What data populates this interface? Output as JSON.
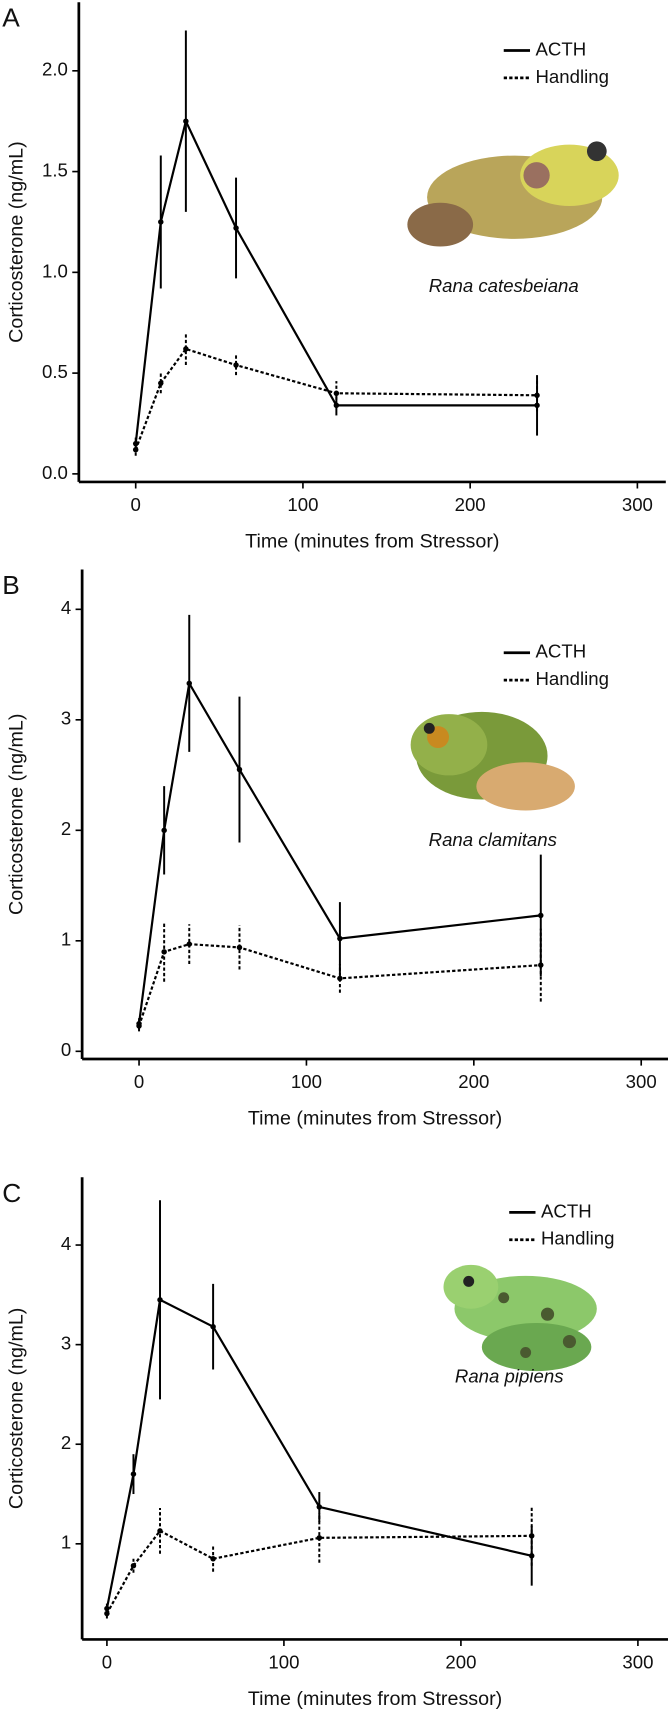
{
  "chart_data": [
    {
      "type": "line",
      "panel": "A",
      "xlabel": "Time (minutes from Stressor)",
      "ylabel": "Corticosterone (ng/mL)",
      "annotation": "Rana catesbeiana",
      "x": [
        0,
        15,
        30,
        60,
        120,
        240
      ],
      "xlim": [
        -34,
        317
      ],
      "xticks": [
        0,
        100,
        200,
        300
      ],
      "ylim": [
        -0.04,
        2.34
      ],
      "yticks": [
        {
          "value": 0,
          "label": "0.0"
        },
        0.5,
        {
          "value": 1,
          "label": "1.0"
        },
        1.5,
        {
          "value": 2,
          "label": "2.0"
        }
      ],
      "legend": "top right",
      "series": [
        {
          "name": "ACTH",
          "color": "#000000",
          "linestyle": "solid",
          "values": [
            0.15,
            1.25,
            1.75,
            1.22,
            0.34,
            0.34
          ],
          "errors": [
            0.03,
            0.33,
            0.45,
            0.25,
            0.05,
            0.15
          ]
        },
        {
          "name": "Handling",
          "color": "#000000",
          "linestyle": "dotted",
          "values": [
            0.12,
            0.45,
            0.62,
            0.54,
            0.4,
            0.39
          ],
          "errors": [
            0.03,
            0.05,
            0.08,
            0.05,
            0.06,
            0.08
          ]
        }
      ]
    },
    {
      "type": "line",
      "panel": "B",
      "xlabel": "Time (minutes from Stressor)",
      "ylabel": "Corticosterone (ng/mL)",
      "annotation": "Rana clamitans",
      "x": [
        0,
        15,
        30,
        60,
        120,
        240
      ],
      "xlim": [
        -34,
        316
      ],
      "xticks": [
        0,
        100,
        200,
        300
      ],
      "ylim": [
        -0.07,
        4.36
      ],
      "yticks": [
        0,
        1,
        2,
        3,
        4
      ],
      "legend": "top right",
      "series": [
        {
          "name": "ACTH",
          "color": "#000000",
          "linestyle": "solid",
          "values": [
            0.25,
            2.0,
            3.33,
            2.55,
            1.02,
            1.23
          ],
          "errors": [
            0.05,
            0.4,
            0.62,
            0.66,
            0.33,
            0.55
          ]
        },
        {
          "name": "Handling",
          "color": "#000000",
          "linestyle": "dotted",
          "values": [
            0.23,
            0.9,
            0.97,
            0.94,
            0.66,
            0.78
          ],
          "errors": [
            0.05,
            0.27,
            0.18,
            0.2,
            0.13,
            0.33
          ]
        }
      ]
    },
    {
      "type": "line",
      "panel": "C",
      "xlabel": "Time (minutes from Stressor)",
      "ylabel": "Corticosterone (ng/mL)",
      "annotation": "Rana pipiens",
      "x": [
        0,
        15,
        30,
        60,
        120,
        240
      ],
      "xlim": [
        -14,
        317
      ],
      "xticks": [
        0,
        100,
        200,
        300
      ],
      "ylim": [
        0.04,
        4.68
      ],
      "yticks": [
        1,
        2,
        3,
        4
      ],
      "legend": "top right",
      "series": [
        {
          "name": "ACTH",
          "color": "#000000",
          "linestyle": "solid",
          "values": [
            0.35,
            1.7,
            3.45,
            3.18,
            1.37,
            0.88
          ],
          "errors": [
            0.05,
            0.2,
            1.0,
            0.43,
            0.15,
            0.3
          ]
        },
        {
          "name": "Handling",
          "color": "#000000",
          "linestyle": "dotted",
          "values": [
            0.3,
            0.78,
            1.13,
            0.85,
            1.06,
            1.08
          ],
          "errors": [
            0.05,
            0.07,
            0.23,
            0.13,
            0.25,
            0.3
          ]
        }
      ]
    }
  ]
}
